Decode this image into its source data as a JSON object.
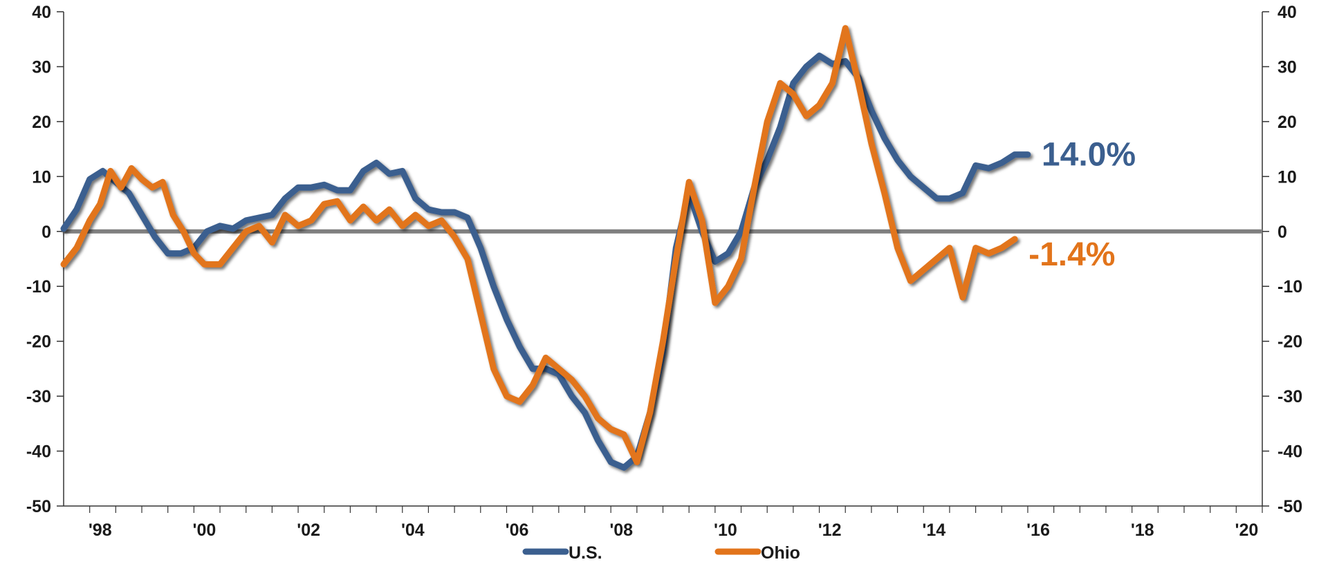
{
  "chart_data": {
    "type": "line",
    "title": "",
    "xlabel": "",
    "ylabel": "",
    "ylim": [
      -50,
      40
    ],
    "xlim": [
      1997.5,
      2020.5
    ],
    "y_ticks": [
      40,
      30,
      20,
      10,
      0,
      -10,
      -20,
      -30,
      -40,
      -50
    ],
    "y_tick_labels": [
      "40",
      "30",
      "20",
      "10",
      "0",
      "-10",
      "-20",
      "-30",
      "-40",
      "-50"
    ],
    "x_ticks": [
      1998,
      2000,
      2002,
      2004,
      2006,
      2008,
      2010,
      2012,
      2014,
      2016,
      2018,
      2020
    ],
    "x_tick_labels": [
      "'98",
      "'00",
      "'02",
      "'04",
      "'06",
      "'08",
      "'10",
      "'12",
      "'14",
      "'16",
      "'18",
      "'20"
    ],
    "zero_line": true,
    "legend_position": "bottom",
    "series": [
      {
        "name": "U.S.",
        "color": "#3b5f8f",
        "end_label": "14.0%",
        "points": [
          [
            1997.5,
            0.5
          ],
          [
            1997.75,
            4
          ],
          [
            1998.0,
            9.5
          ],
          [
            1998.25,
            11
          ],
          [
            1998.5,
            9
          ],
          [
            1998.75,
            7
          ],
          [
            1999.0,
            3
          ],
          [
            1999.25,
            -1
          ],
          [
            1999.5,
            -4
          ],
          [
            1999.75,
            -4
          ],
          [
            2000.0,
            -3
          ],
          [
            2000.25,
            0
          ],
          [
            2000.5,
            1
          ],
          [
            2000.75,
            0.5
          ],
          [
            2001.0,
            2
          ],
          [
            2001.25,
            2.5
          ],
          [
            2001.5,
            3
          ],
          [
            2001.75,
            6
          ],
          [
            2002.0,
            8
          ],
          [
            2002.25,
            8
          ],
          [
            2002.5,
            8.5
          ],
          [
            2002.75,
            7.5
          ],
          [
            2003.0,
            7.5
          ],
          [
            2003.25,
            11
          ],
          [
            2003.5,
            12.5
          ],
          [
            2003.75,
            10.5
          ],
          [
            2004.0,
            11
          ],
          [
            2004.25,
            6
          ],
          [
            2004.5,
            4
          ],
          [
            2004.75,
            3.5
          ],
          [
            2005.0,
            3.5
          ],
          [
            2005.25,
            2.5
          ],
          [
            2005.5,
            -3
          ],
          [
            2005.75,
            -10
          ],
          [
            2006.0,
            -16
          ],
          [
            2006.25,
            -21
          ],
          [
            2006.5,
            -25
          ],
          [
            2006.75,
            -25
          ],
          [
            2007.0,
            -26
          ],
          [
            2007.25,
            -30
          ],
          [
            2007.5,
            -33
          ],
          [
            2007.75,
            -38
          ],
          [
            2008.0,
            -42
          ],
          [
            2008.25,
            -43
          ],
          [
            2008.5,
            -41
          ],
          [
            2008.75,
            -33
          ],
          [
            2009.0,
            -22
          ],
          [
            2009.25,
            -3
          ],
          [
            2009.5,
            7
          ],
          [
            2009.75,
            0
          ],
          [
            2010.0,
            -5.5
          ],
          [
            2010.25,
            -4
          ],
          [
            2010.5,
            0
          ],
          [
            2010.75,
            8
          ],
          [
            2011.0,
            13
          ],
          [
            2011.25,
            19
          ],
          [
            2011.5,
            27
          ],
          [
            2011.75,
            30
          ],
          [
            2012.0,
            32
          ],
          [
            2012.25,
            30.5
          ],
          [
            2012.5,
            31
          ],
          [
            2012.75,
            28
          ],
          [
            2013.0,
            22
          ],
          [
            2013.25,
            17
          ],
          [
            2013.5,
            13
          ],
          [
            2013.75,
            10
          ],
          [
            2014.0,
            8
          ],
          [
            2014.25,
            6
          ],
          [
            2014.5,
            6
          ],
          [
            2014.75,
            7
          ],
          [
            2015.0,
            12
          ],
          [
            2015.25,
            11.5
          ],
          [
            2015.5,
            12.5
          ],
          [
            2015.75,
            14
          ],
          [
            2016.0,
            14
          ]
        ]
      },
      {
        "name": "Ohio",
        "color": "#e2741b",
        "end_label": "-1.4%",
        "points": [
          [
            1997.5,
            -6
          ],
          [
            1997.75,
            -3
          ],
          [
            1998.0,
            2
          ],
          [
            1998.2,
            5
          ],
          [
            1998.4,
            11
          ],
          [
            1998.6,
            8
          ],
          [
            1998.8,
            11.5
          ],
          [
            1999.0,
            9.5
          ],
          [
            1999.2,
            8
          ],
          [
            1999.4,
            9
          ],
          [
            1999.6,
            3
          ],
          [
            1999.8,
            0
          ],
          [
            2000.0,
            -4
          ],
          [
            2000.2,
            -6
          ],
          [
            2000.5,
            -6
          ],
          [
            2000.75,
            -3
          ],
          [
            2001.0,
            0
          ],
          [
            2001.25,
            1
          ],
          [
            2001.5,
            -2
          ],
          [
            2001.75,
            3
          ],
          [
            2002.0,
            1
          ],
          [
            2002.25,
            2
          ],
          [
            2002.5,
            5
          ],
          [
            2002.75,
            5.5
          ],
          [
            2003.0,
            2
          ],
          [
            2003.25,
            4.5
          ],
          [
            2003.5,
            2
          ],
          [
            2003.75,
            4
          ],
          [
            2004.0,
            1
          ],
          [
            2004.25,
            3
          ],
          [
            2004.5,
            1
          ],
          [
            2004.75,
            2
          ],
          [
            2005.0,
            -1
          ],
          [
            2005.25,
            -5
          ],
          [
            2005.5,
            -15
          ],
          [
            2005.75,
            -25
          ],
          [
            2006.0,
            -30
          ],
          [
            2006.25,
            -31
          ],
          [
            2006.5,
            -28
          ],
          [
            2006.75,
            -23
          ],
          [
            2007.0,
            -25
          ],
          [
            2007.25,
            -27
          ],
          [
            2007.5,
            -30
          ],
          [
            2007.75,
            -34
          ],
          [
            2008.0,
            -36
          ],
          [
            2008.25,
            -37
          ],
          [
            2008.5,
            -42
          ],
          [
            2008.75,
            -33
          ],
          [
            2009.0,
            -20
          ],
          [
            2009.25,
            -5
          ],
          [
            2009.5,
            9
          ],
          [
            2009.75,
            2
          ],
          [
            2010.0,
            -13
          ],
          [
            2010.25,
            -10
          ],
          [
            2010.5,
            -5
          ],
          [
            2010.75,
            8
          ],
          [
            2011.0,
            20
          ],
          [
            2011.25,
            27
          ],
          [
            2011.5,
            25
          ],
          [
            2011.75,
            21
          ],
          [
            2012.0,
            23
          ],
          [
            2012.25,
            27
          ],
          [
            2012.5,
            37
          ],
          [
            2012.75,
            27
          ],
          [
            2013.0,
            16
          ],
          [
            2013.25,
            7
          ],
          [
            2013.5,
            -3
          ],
          [
            2013.75,
            -9
          ],
          [
            2014.0,
            -7
          ],
          [
            2014.25,
            -5
          ],
          [
            2014.5,
            -3
          ],
          [
            2014.75,
            -12
          ],
          [
            2015.0,
            -3
          ],
          [
            2015.25,
            -4
          ],
          [
            2015.5,
            -3
          ],
          [
            2015.75,
            -1.4
          ]
        ]
      }
    ]
  }
}
